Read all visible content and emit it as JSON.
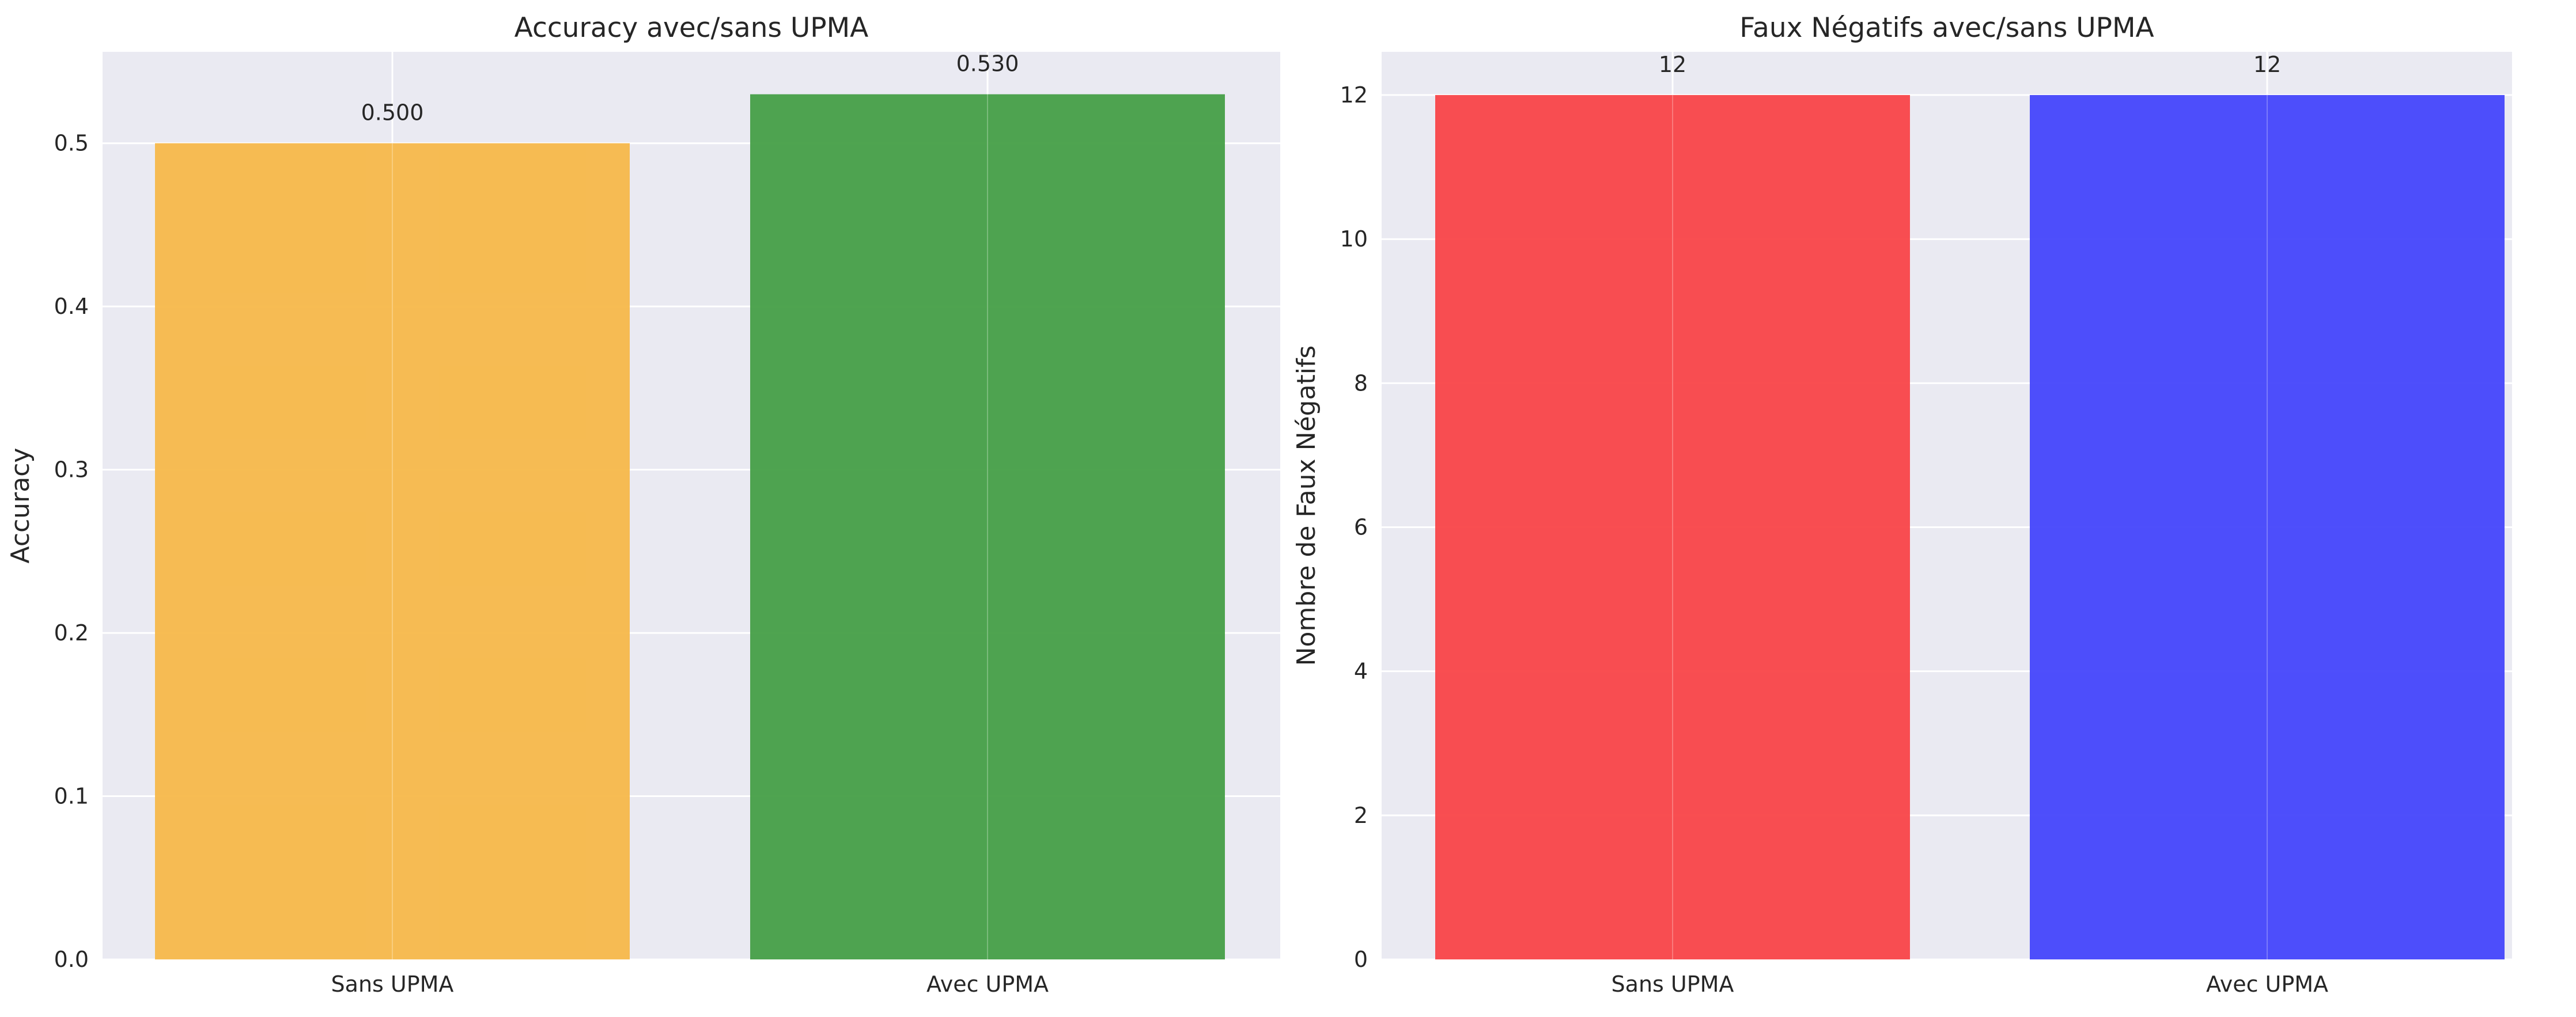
{
  "chart_data": [
    {
      "type": "bar",
      "title": "Accuracy avec/sans UPMA",
      "xlabel": "",
      "ylabel": "Accuracy",
      "categories": [
        "Sans UPMA",
        "Avec UPMA"
      ],
      "values": [
        0.5,
        0.53
      ],
      "value_labels": [
        "0.500",
        "0.530"
      ],
      "colors": [
        "#f7b84a",
        "#469f47"
      ],
      "ylim": [
        0,
        0.556
      ],
      "yticks": [
        0.0,
        0.1,
        0.2,
        0.3,
        0.4,
        0.5
      ],
      "ytick_labels": [
        "0.0",
        "0.1",
        "0.2",
        "0.3",
        "0.4",
        "0.5"
      ],
      "grid": true
    },
    {
      "type": "bar",
      "title": "Faux Négatifs avec/sans UPMA",
      "xlabel": "",
      "ylabel": "Nombre de Faux Négatifs",
      "categories": [
        "Sans UPMA",
        "Avec UPMA"
      ],
      "values": [
        12,
        12
      ],
      "value_labels": [
        "12",
        "12"
      ],
      "colors": [
        "#f94548",
        "#4546fb"
      ],
      "ylim": [
        0,
        12.6
      ],
      "yticks": [
        0,
        2,
        4,
        6,
        8,
        10,
        12
      ],
      "ytick_labels": [
        "0",
        "2",
        "4",
        "6",
        "8",
        "10",
        "12"
      ],
      "grid": true
    }
  ]
}
